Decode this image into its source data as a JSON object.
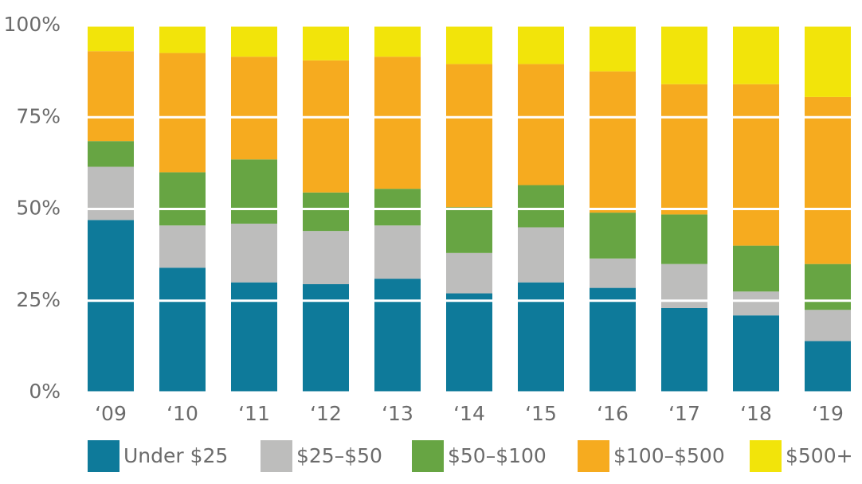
{
  "chart_data": {
    "type": "stacked_bar",
    "categories": [
      "‘09",
      "‘10",
      "‘11",
      "‘12",
      "‘13",
      "‘14",
      "‘15",
      "‘16",
      "‘17",
      "‘18",
      "‘19"
    ],
    "series": [
      {
        "name": "Under $25",
        "color": "#0e7a9a",
        "values": [
          47,
          34,
          30,
          29.5,
          31,
          27,
          30,
          28.5,
          23,
          21,
          14
        ]
      },
      {
        "name": "$25–$50",
        "color": "#bdbdbc",
        "values": [
          14.5,
          11.5,
          16,
          14.5,
          14.5,
          11,
          15,
          8,
          12,
          6.5,
          8.5
        ]
      },
      {
        "name": "$50–$100",
        "color": "#67a543",
        "values": [
          7,
          14.5,
          17.5,
          10.5,
          10,
          12.5,
          11.5,
          12.5,
          13.5,
          12.5,
          12.5
        ]
      },
      {
        "name": "$100–$500",
        "color": "#f6ab1f",
        "values": [
          24.5,
          32.5,
          28,
          36,
          36,
          39,
          33,
          38.5,
          35.5,
          44,
          45.5
        ]
      },
      {
        "name": "$500+",
        "color": "#f2e40a",
        "values": [
          7,
          7.5,
          8.5,
          9.5,
          8.5,
          10.5,
          10.5,
          12.5,
          16,
          16,
          19.5
        ]
      }
    ],
    "ylim": [
      0,
      100
    ],
    "yticks": [
      {
        "value": 0,
        "label": "0%"
      },
      {
        "value": 25,
        "label": "25%"
      },
      {
        "value": 50,
        "label": "50%"
      },
      {
        "value": 75,
        "label": "75%"
      },
      {
        "value": 100,
        "label": "100%"
      }
    ],
    "grid": true,
    "legend": "bottom"
  }
}
